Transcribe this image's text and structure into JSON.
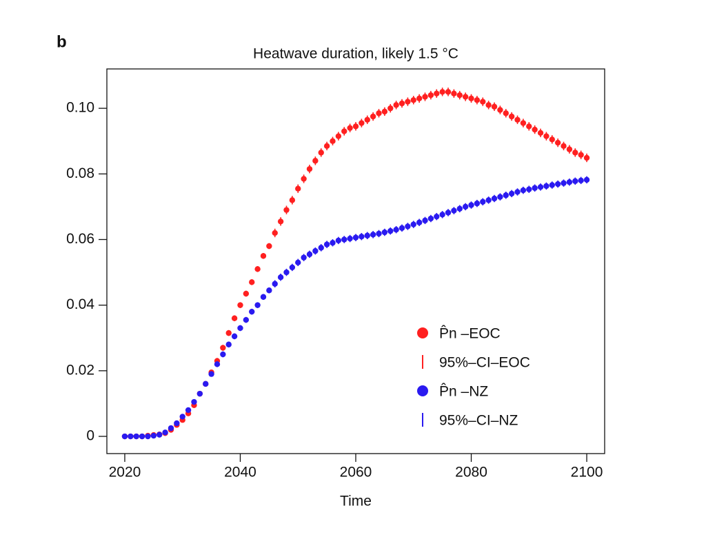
{
  "chart_data": {
    "type": "scatter",
    "panel_label": "b",
    "title": "Heatwave duration, likely 1.5 °C",
    "x_label": "Time",
    "x": [
      2020,
      2021,
      2022,
      2023,
      2024,
      2025,
      2026,
      2027,
      2028,
      2029,
      2030,
      2031,
      2032,
      2033,
      2034,
      2035,
      2036,
      2037,
      2038,
      2039,
      2040,
      2041,
      2042,
      2043,
      2044,
      2045,
      2046,
      2047,
      2048,
      2049,
      2050,
      2051,
      2052,
      2053,
      2054,
      2055,
      2056,
      2057,
      2058,
      2059,
      2060,
      2061,
      2062,
      2063,
      2064,
      2065,
      2066,
      2067,
      2068,
      2069,
      2070,
      2071,
      2072,
      2073,
      2074,
      2075,
      2076,
      2077,
      2078,
      2079,
      2080,
      2081,
      2082,
      2083,
      2084,
      2085,
      2086,
      2087,
      2088,
      2089,
      2090,
      2091,
      2092,
      2093,
      2094,
      2095,
      2096,
      2097,
      2098,
      2099,
      2100
    ],
    "series": [
      {
        "name": "P̂n –EOC",
        "ci_name": "95%–CI–EOC",
        "color": "#ff2020",
        "values": [
          0,
          0,
          0,
          0,
          0.0002,
          0.0004,
          0.0006,
          0.001,
          0.002,
          0.0035,
          0.005,
          0.007,
          0.0095,
          0.013,
          0.016,
          0.0195,
          0.023,
          0.027,
          0.0315,
          0.036,
          0.04,
          0.0435,
          0.047,
          0.051,
          0.055,
          0.058,
          0.062,
          0.0655,
          0.069,
          0.072,
          0.0755,
          0.0785,
          0.0815,
          0.084,
          0.0865,
          0.0885,
          0.09,
          0.0915,
          0.093,
          0.094,
          0.0945,
          0.0955,
          0.0965,
          0.0975,
          0.0985,
          0.099,
          0.1,
          0.101,
          0.1015,
          0.102,
          0.1025,
          0.103,
          0.1035,
          0.104,
          0.1045,
          0.105,
          0.105,
          0.1045,
          0.104,
          0.1035,
          0.103,
          0.1025,
          0.102,
          0.101,
          0.1005,
          0.0995,
          0.0985,
          0.0975,
          0.0965,
          0.0955,
          0.0945,
          0.0935,
          0.0925,
          0.0915,
          0.0905,
          0.0895,
          0.0885,
          0.0875,
          0.0865,
          0.0858,
          0.0849
        ],
        "errors": [
          0.0002,
          0.0002,
          0.0002,
          0.0002,
          0.0002,
          0.0002,
          0.0002,
          0.0005,
          0.0005,
          0.0005,
          0.0005,
          0.0005,
          0.0005,
          0.0005,
          0.0005,
          0.0005,
          0.0009,
          0.0009,
          0.0009,
          0.0009,
          0.0009,
          0.0009,
          0.0009,
          0.0009,
          0.0009,
          0.0009,
          0.0013,
          0.0013,
          0.0013,
          0.0013,
          0.0013,
          0.0013,
          0.0013,
          0.0013,
          0.0013,
          0.0013,
          0.0013,
          0.0013,
          0.0013,
          0.0013,
          0.0013,
          0.0013,
          0.0013,
          0.0013,
          0.0013,
          0.0013,
          0.0013,
          0.0013,
          0.0013,
          0.0013,
          0.0013,
          0.0013,
          0.0013,
          0.0013,
          0.0013,
          0.0013,
          0.0013,
          0.0013,
          0.0013,
          0.0013,
          0.0013,
          0.0013,
          0.0013,
          0.0013,
          0.0013,
          0.0013,
          0.0013,
          0.0013,
          0.0013,
          0.0013,
          0.0013,
          0.0013,
          0.0013,
          0.0013,
          0.0013,
          0.0013,
          0.0013,
          0.0013,
          0.0013,
          0.0013,
          0.0013
        ]
      },
      {
        "name": "P̂n –NZ",
        "ci_name": "95%–CI–NZ",
        "color": "#2a1af0",
        "values": [
          0,
          0,
          0,
          0,
          0,
          0.0002,
          0.0005,
          0.0012,
          0.0025,
          0.004,
          0.006,
          0.008,
          0.0105,
          0.013,
          0.016,
          0.019,
          0.022,
          0.025,
          0.028,
          0.0305,
          0.033,
          0.0355,
          0.038,
          0.04,
          0.0425,
          0.0445,
          0.0465,
          0.0485,
          0.05,
          0.0515,
          0.053,
          0.0545,
          0.0555,
          0.0565,
          0.0575,
          0.0585,
          0.059,
          0.0597,
          0.06,
          0.0603,
          0.0606,
          0.0609,
          0.0612,
          0.0615,
          0.0618,
          0.0622,
          0.0626,
          0.063,
          0.0635,
          0.064,
          0.0646,
          0.0652,
          0.0658,
          0.0664,
          0.067,
          0.0676,
          0.0682,
          0.0688,
          0.0694,
          0.07,
          0.0705,
          0.071,
          0.0715,
          0.072,
          0.0725,
          0.073,
          0.0735,
          0.074,
          0.0745,
          0.075,
          0.0753,
          0.0757,
          0.076,
          0.0763,
          0.0766,
          0.0769,
          0.0772,
          0.0775,
          0.0778,
          0.078,
          0.0782
        ],
        "errors": [
          0.0002,
          0.0002,
          0.0002,
          0.0002,
          0.0002,
          0.0002,
          0.0002,
          0.0005,
          0.0005,
          0.0005,
          0.0005,
          0.0005,
          0.0005,
          0.0005,
          0.0005,
          0.0005,
          0.0009,
          0.0009,
          0.0009,
          0.0009,
          0.0009,
          0.0009,
          0.0009,
          0.0009,
          0.0009,
          0.0009,
          0.0011,
          0.0011,
          0.0011,
          0.0011,
          0.0011,
          0.0011,
          0.0011,
          0.0011,
          0.0011,
          0.0011,
          0.0011,
          0.0011,
          0.0011,
          0.0011,
          0.0011,
          0.0011,
          0.0011,
          0.0011,
          0.0011,
          0.0011,
          0.0011,
          0.0011,
          0.0011,
          0.0011,
          0.0011,
          0.0011,
          0.0011,
          0.0011,
          0.0011,
          0.0011,
          0.0011,
          0.0011,
          0.0011,
          0.0011,
          0.0011,
          0.0011,
          0.0011,
          0.0011,
          0.0011,
          0.0011,
          0.0011,
          0.0011,
          0.0011,
          0.0011,
          0.0011,
          0.0011,
          0.0011,
          0.0011,
          0.0011,
          0.0011,
          0.0011,
          0.0011,
          0.0011,
          0.0011,
          0.0011
        ]
      }
    ],
    "xlim": [
      2016.9,
      2103.1
    ],
    "ylim": [
      -0.00525,
      0.112
    ],
    "xticks": [
      2020,
      2040,
      2060,
      2080,
      2100
    ],
    "yticks": [
      0,
      0.02,
      0.04,
      0.06,
      0.08,
      {
        "value": 0.1,
        "label": "0.10"
      }
    ],
    "grid": false,
    "legend": "lower right"
  }
}
